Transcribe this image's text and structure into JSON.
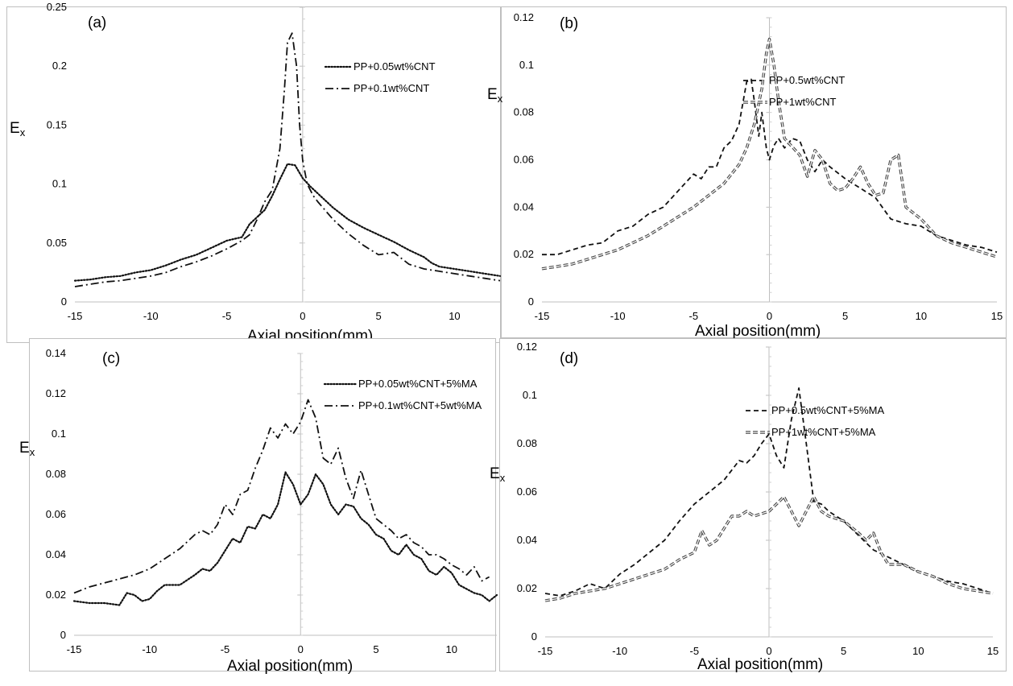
{
  "chart_data": [
    {
      "panel_label": "(a)",
      "type": "line",
      "xlabel": "Axial position(mm)",
      "ylabel": "E",
      "ylabel_sub": "x",
      "xlim": [
        -15,
        13
      ],
      "ylim": [
        0,
        0.25
      ],
      "xticks": [
        -15,
        -10,
        -5,
        0,
        5,
        10
      ],
      "yticks": [
        0,
        0.05,
        0.1,
        0.15,
        0.2,
        0.25
      ],
      "ytick_labels": [
        "0",
        "0.05",
        "0.1",
        "0.15",
        "0.2",
        "0.25"
      ],
      "legend_position": "top-right",
      "series": [
        {
          "name": "PP+0.05wt%CNT",
          "style": "dotted",
          "x": [
            -15,
            -14,
            -13,
            -12,
            -11,
            -10,
            -9,
            -8,
            -7,
            -6,
            -5,
            -4,
            -3.5,
            -3,
            -2.5,
            -2,
            -1.5,
            -1,
            -0.5,
            0,
            0.5,
            1,
            2,
            3,
            4,
            5,
            6,
            7,
            8,
            8.5,
            9,
            10,
            11,
            12,
            13
          ],
          "y": [
            0.018,
            0.019,
            0.021,
            0.022,
            0.025,
            0.027,
            0.031,
            0.036,
            0.04,
            0.046,
            0.052,
            0.055,
            0.066,
            0.072,
            0.078,
            0.09,
            0.104,
            0.117,
            0.116,
            0.105,
            0.098,
            0.092,
            0.08,
            0.07,
            0.063,
            0.057,
            0.051,
            0.044,
            0.038,
            0.033,
            0.03,
            0.028,
            0.026,
            0.024,
            0.022
          ]
        },
        {
          "name": "PP+0.1wt%CNT",
          "style": "dash-dot",
          "x": [
            -15,
            -14,
            -13,
            -12,
            -11,
            -10,
            -9,
            -8,
            -7,
            -6,
            -5,
            -4,
            -3.5,
            -3,
            -2.5,
            -2,
            -1.5,
            -1.2,
            -1,
            -0.7,
            -0.4,
            -0.2,
            0,
            0.3,
            0.7,
            1,
            2,
            3,
            4,
            5,
            6,
            7,
            8,
            9,
            10,
            11,
            12,
            13
          ],
          "y": [
            0.013,
            0.015,
            0.017,
            0.018,
            0.02,
            0.022,
            0.025,
            0.03,
            0.034,
            0.039,
            0.045,
            0.052,
            0.057,
            0.07,
            0.085,
            0.095,
            0.13,
            0.18,
            0.22,
            0.228,
            0.2,
            0.15,
            0.12,
            0.1,
            0.09,
            0.085,
            0.07,
            0.058,
            0.048,
            0.04,
            0.042,
            0.032,
            0.028,
            0.026,
            0.024,
            0.022,
            0.02,
            0.018
          ]
        }
      ]
    },
    {
      "panel_label": "(b)",
      "type": "line",
      "xlabel": "Axial position(mm)",
      "ylabel": "E",
      "ylabel_sub": "x",
      "xlim": [
        -15,
        15
      ],
      "ylim": [
        0,
        0.12
      ],
      "xticks": [
        -15,
        -10,
        -5,
        0,
        5,
        10,
        15
      ],
      "yticks": [
        0,
        0.02,
        0.04,
        0.06,
        0.08,
        0.1,
        0.12
      ],
      "ytick_labels": [
        "0",
        "0.02",
        "0.04",
        "0.06",
        "0.08",
        "0.1",
        "0.12"
      ],
      "legend_position": "top-right",
      "series": [
        {
          "name": "PP+0.5wt%CNT",
          "style": "dashed",
          "x": [
            -15,
            -14,
            -13,
            -12,
            -11,
            -10,
            -9,
            -8,
            -7,
            -6,
            -5,
            -4.5,
            -4,
            -3.5,
            -3,
            -2.5,
            -2,
            -1.5,
            -1.2,
            -1,
            -0.7,
            -0.5,
            -0.2,
            0,
            0.3,
            0.6,
            1,
            1.5,
            2,
            2.5,
            3,
            3.5,
            4,
            5,
            6,
            7,
            8,
            9,
            10,
            11,
            12,
            13,
            14,
            15
          ],
          "y": [
            0.02,
            0.02,
            0.022,
            0.024,
            0.025,
            0.03,
            0.032,
            0.037,
            0.04,
            0.047,
            0.054,
            0.052,
            0.057,
            0.057,
            0.065,
            0.068,
            0.075,
            0.093,
            0.094,
            0.085,
            0.07,
            0.08,
            0.065,
            0.06,
            0.066,
            0.069,
            0.065,
            0.069,
            0.068,
            0.06,
            0.055,
            0.06,
            0.057,
            0.052,
            0.048,
            0.044,
            0.035,
            0.033,
            0.032,
            0.028,
            0.026,
            0.024,
            0.023,
            0.021
          ]
        },
        {
          "name": "PP+1wt%CNT",
          "style": "double-dash",
          "x": [
            -15,
            -14,
            -13,
            -12,
            -11,
            -10,
            -9,
            -8,
            -7,
            -6,
            -5,
            -4,
            -3,
            -2,
            -1.5,
            -1,
            -0.5,
            -0.2,
            0,
            0.3,
            0.6,
            1,
            2,
            2.5,
            3,
            3.5,
            4,
            4.5,
            5,
            5.5,
            6,
            6.5,
            7,
            7.5,
            8,
            8.5,
            9,
            10,
            11,
            12,
            13,
            14,
            15
          ],
          "y": [
            0.014,
            0.015,
            0.016,
            0.018,
            0.02,
            0.022,
            0.025,
            0.028,
            0.032,
            0.036,
            0.04,
            0.045,
            0.05,
            0.058,
            0.065,
            0.075,
            0.09,
            0.105,
            0.111,
            0.1,
            0.085,
            0.069,
            0.062,
            0.053,
            0.064,
            0.06,
            0.05,
            0.047,
            0.048,
            0.052,
            0.057,
            0.05,
            0.045,
            0.046,
            0.06,
            0.062,
            0.04,
            0.035,
            0.028,
            0.025,
            0.023,
            0.021,
            0.019
          ]
        }
      ]
    },
    {
      "panel_label": "(c)",
      "type": "line",
      "xlabel": "Axial position(mm)",
      "ylabel": "E",
      "ylabel_sub": "x",
      "xlim": [
        -15,
        13
      ],
      "ylim": [
        0,
        0.14
      ],
      "xticks": [
        -15,
        -10,
        -5,
        0,
        5,
        10
      ],
      "yticks": [
        0,
        0.02,
        0.04,
        0.06,
        0.08,
        0.1,
        0.12,
        0.14
      ],
      "ytick_labels": [
        "0",
        "0.02",
        "0.04",
        "0.06",
        "0.08",
        "0.1",
        "0.12",
        "0.14"
      ],
      "legend_position": "top-right",
      "series": [
        {
          "name": "PP+0.05wt%CNT+5%MA",
          "style": "dotted",
          "x": [
            -15,
            -14,
            -13,
            -12,
            -11.5,
            -11,
            -10.5,
            -10,
            -9.5,
            -9,
            -8,
            -7,
            -6.5,
            -6,
            -5.5,
            -5,
            -4.5,
            -4,
            -3.5,
            -3,
            -2.5,
            -2,
            -1.5,
            -1,
            -0.5,
            0,
            0.5,
            1,
            1.5,
            2,
            2.5,
            3,
            3.5,
            4,
            4.5,
            5,
            5.5,
            6,
            6.5,
            7,
            7.5,
            8,
            8.5,
            9,
            9.5,
            10,
            10.5,
            11,
            11.5,
            12,
            12.5,
            13
          ],
          "y": [
            0.017,
            0.016,
            0.016,
            0.015,
            0.021,
            0.02,
            0.017,
            0.018,
            0.022,
            0.025,
            0.025,
            0.03,
            0.033,
            0.032,
            0.036,
            0.042,
            0.048,
            0.046,
            0.054,
            0.053,
            0.06,
            0.058,
            0.065,
            0.081,
            0.075,
            0.065,
            0.07,
            0.08,
            0.075,
            0.065,
            0.06,
            0.065,
            0.064,
            0.058,
            0.055,
            0.05,
            0.048,
            0.042,
            0.04,
            0.045,
            0.04,
            0.038,
            0.032,
            0.03,
            0.034,
            0.031,
            0.025,
            0.023,
            0.021,
            0.02,
            0.017,
            0.02
          ]
        },
        {
          "name": "PP+0.1wt%CNT+5wt%MA",
          "style": "dash-dot",
          "x": [
            -15,
            -14,
            -13,
            -12,
            -11,
            -10,
            -9,
            -8,
            -7,
            -6.5,
            -6,
            -5.5,
            -5,
            -4.5,
            -4,
            -3.5,
            -3,
            -2.5,
            -2,
            -1.5,
            -1,
            -0.5,
            0,
            0.5,
            1,
            1.5,
            2,
            2.5,
            3,
            3.5,
            4,
            4.5,
            5,
            5.5,
            6,
            6.5,
            7,
            7.5,
            8,
            8.5,
            9,
            9.5,
            10,
            10.5,
            11,
            11.5,
            12,
            12.5
          ],
          "y": [
            0.021,
            0.024,
            0.026,
            0.028,
            0.03,
            0.033,
            0.038,
            0.043,
            0.05,
            0.052,
            0.05,
            0.055,
            0.065,
            0.06,
            0.07,
            0.072,
            0.083,
            0.092,
            0.103,
            0.098,
            0.105,
            0.1,
            0.106,
            0.117,
            0.108,
            0.088,
            0.085,
            0.093,
            0.078,
            0.068,
            0.082,
            0.07,
            0.058,
            0.055,
            0.052,
            0.048,
            0.05,
            0.046,
            0.044,
            0.04,
            0.04,
            0.038,
            0.035,
            0.033,
            0.03,
            0.034,
            0.027,
            0.029
          ]
        }
      ]
    },
    {
      "panel_label": "(d)",
      "type": "line",
      "xlabel": "Axial position(mm)",
      "ylabel": "E",
      "ylabel_sub": "x",
      "xlim": [
        -15,
        15
      ],
      "ylim": [
        0,
        0.12
      ],
      "xticks": [
        -15,
        -10,
        -5,
        0,
        5,
        10,
        15
      ],
      "yticks": [
        0,
        0.02,
        0.04,
        0.06,
        0.08,
        0.1,
        0.12
      ],
      "ytick_labels": [
        "0",
        "0.02",
        "0.04",
        "0.06",
        "0.08",
        "0.1",
        "0.12"
      ],
      "legend_position": "top-right",
      "series": [
        {
          "name": "PP+0.5wt%CNT+5%MA",
          "style": "dashed",
          "x": [
            -15,
            -14,
            -13,
            -12,
            -11,
            -10,
            -9,
            -8,
            -7,
            -6,
            -5,
            -4,
            -3,
            -2,
            -1.5,
            -1,
            -0.5,
            0,
            0.5,
            1,
            1.5,
            2,
            2.5,
            3,
            3.5,
            4,
            5,
            6,
            7,
            8,
            9,
            10,
            11,
            12,
            13,
            14,
            15
          ],
          "y": [
            0.018,
            0.017,
            0.019,
            0.022,
            0.02,
            0.026,
            0.03,
            0.035,
            0.04,
            0.048,
            0.055,
            0.06,
            0.065,
            0.073,
            0.072,
            0.075,
            0.08,
            0.084,
            0.075,
            0.07,
            0.09,
            0.103,
            0.08,
            0.056,
            0.055,
            0.052,
            0.048,
            0.042,
            0.036,
            0.033,
            0.03,
            0.027,
            0.025,
            0.023,
            0.022,
            0.02,
            0.018
          ]
        },
        {
          "name": "PP+1wt%CNT+5%MA",
          "style": "double-dash",
          "x": [
            -15,
            -14,
            -13,
            -12,
            -11,
            -10,
            -9,
            -8,
            -7,
            -6,
            -5,
            -4.5,
            -4,
            -3.5,
            -3,
            -2.5,
            -2,
            -1.5,
            -1,
            -0.5,
            0,
            0.5,
            1,
            1.5,
            2,
            2.5,
            3,
            3.5,
            4,
            5,
            6,
            6.5,
            7,
            7.5,
            8,
            9,
            10,
            11,
            12,
            13,
            14,
            15
          ],
          "y": [
            0.015,
            0.016,
            0.018,
            0.019,
            0.02,
            0.022,
            0.024,
            0.026,
            0.028,
            0.032,
            0.035,
            0.044,
            0.038,
            0.04,
            0.045,
            0.05,
            0.05,
            0.052,
            0.05,
            0.051,
            0.052,
            0.055,
            0.058,
            0.052,
            0.046,
            0.052,
            0.058,
            0.052,
            0.05,
            0.048,
            0.043,
            0.04,
            0.043,
            0.035,
            0.03,
            0.03,
            0.027,
            0.025,
            0.022,
            0.02,
            0.019,
            0.018
          ]
        }
      ]
    }
  ]
}
